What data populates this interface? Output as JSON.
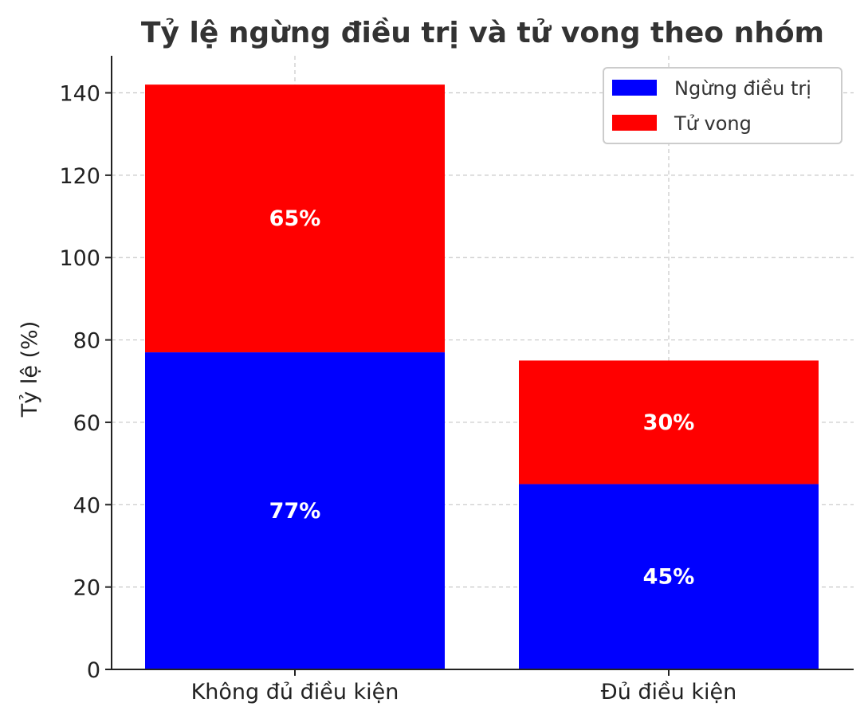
{
  "chart_data": {
    "type": "bar",
    "stacked": true,
    "title": "Tỷ lệ ngừng điều trị và tử vong theo nhóm",
    "xlabel": "",
    "ylabel": "Tỷ lệ (%)",
    "categories": [
      "Không đủ điều kiện",
      "Đủ điều kiện"
    ],
    "series": [
      {
        "name": "Ngừng điều trị",
        "color": "#0000ff",
        "values": [
          77,
          45
        ],
        "labels": [
          "77%",
          "45%"
        ]
      },
      {
        "name": "Tử vong",
        "color": "#ff0000",
        "values": [
          65,
          30
        ],
        "labels": [
          "65%",
          "30%"
        ]
      }
    ],
    "ylim": [
      0,
      149
    ],
    "yticks": [
      0,
      20,
      40,
      60,
      80,
      100,
      120,
      140
    ],
    "grid": true,
    "legend_position": "top-right"
  }
}
